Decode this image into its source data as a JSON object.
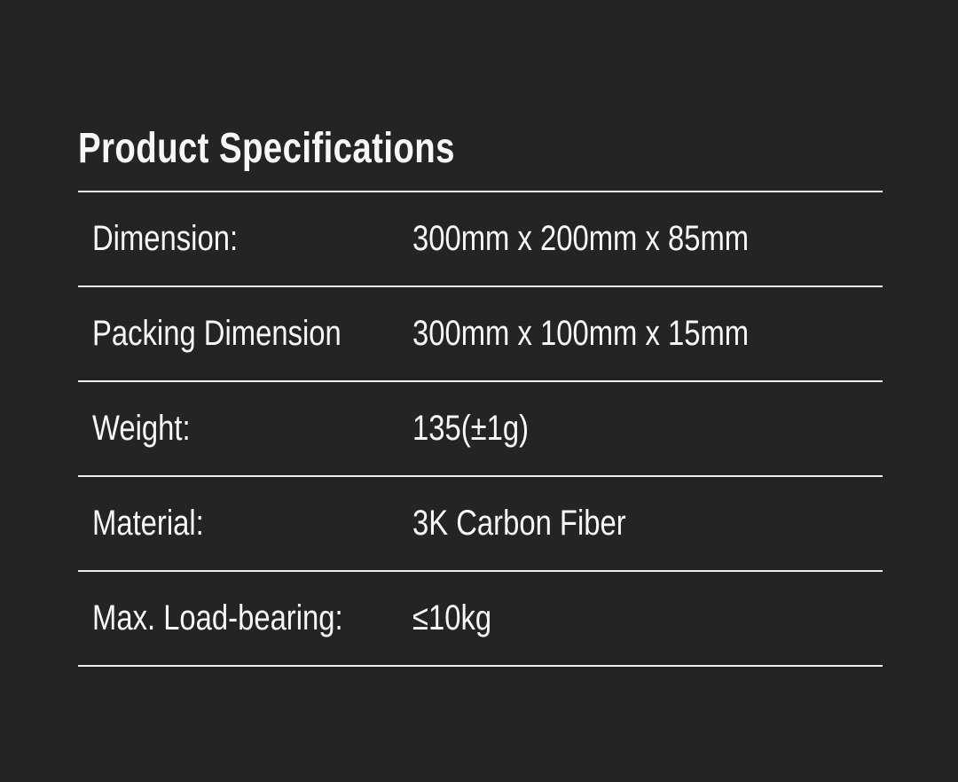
{
  "page": {
    "background_color": "#242424",
    "text_color": "#f7f7f7",
    "divider_color": "#eeeeee"
  },
  "title": "Product Specifications",
  "table": {
    "rows": [
      {
        "label": "Dimension:",
        "value": "300mm x 200mm x 85mm"
      },
      {
        "label": "Packing Dimension",
        "value": "300mm x 100mm x 15mm"
      },
      {
        "label": "Weight:",
        "value": "135(±1g)"
      },
      {
        "label": "Material:",
        "value": "3K Carbon Fiber"
      },
      {
        "label": "Max. Load-bearing:",
        "value": "≤10kg"
      }
    ]
  }
}
